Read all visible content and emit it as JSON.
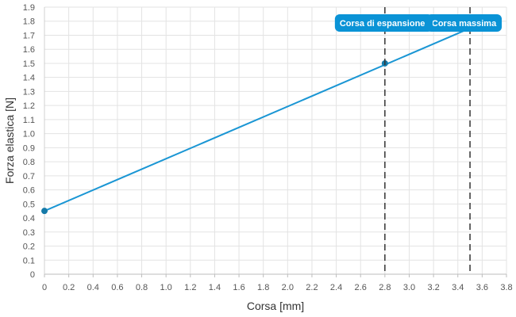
{
  "chart_data": {
    "type": "line",
    "title": "",
    "xlabel": "Corsa [mm]",
    "ylabel": "Forza elastica [N]",
    "xlim": [
      0,
      3.8
    ],
    "ylim": [
      0,
      1.9
    ],
    "x_ticks": [
      0,
      0.2,
      0.4,
      0.6,
      0.8,
      1.0,
      1.2,
      1.4,
      1.6,
      1.8,
      2.0,
      2.2,
      2.4,
      2.6,
      2.8,
      3.0,
      3.2,
      3.4,
      3.6,
      3.8
    ],
    "x_tick_labels": [
      "0",
      "0.2",
      "0.4",
      "0.6",
      "0.8",
      "1.0",
      "1.2",
      "1.4",
      "1.6",
      "1.8",
      "2.0",
      "2.2",
      "2.4",
      "2.6",
      "2.8",
      "3.0",
      "3.2",
      "3.4",
      "3.6",
      "3.8"
    ],
    "y_ticks": [
      0,
      0.1,
      0.2,
      0.3,
      0.4,
      0.5,
      0.6,
      0.7,
      0.8,
      0.9,
      1.0,
      1.1,
      1.2,
      1.3,
      1.4,
      1.5,
      1.6,
      1.7,
      1.8,
      1.9
    ],
    "y_tick_labels": [
      "0",
      "0.1",
      "0.2",
      "0.3",
      "0.4",
      "0.5",
      "0.6",
      "0.7",
      "0.8",
      "0.9",
      "1.0",
      "1.1",
      "1.2",
      "1.3",
      "1.4",
      "1.5",
      "1.6",
      "1.7",
      "1.8",
      "1.9"
    ],
    "grid": true,
    "legend": "none",
    "series": [
      {
        "color": "#1a96d4",
        "x": [
          0,
          3.5
        ],
        "y": [
          0.45,
          1.75
        ]
      }
    ],
    "markers": [
      {
        "x": 0,
        "y": 0.45
      },
      {
        "x": 2.8,
        "y": 1.5
      }
    ],
    "vlines": [
      {
        "x": 2.8,
        "label": "Corsa di espansione"
      },
      {
        "x": 3.5,
        "label": "Corsa massima"
      }
    ],
    "colors": {
      "line": "#1a96d4",
      "marker": "#157aa8",
      "annotation_bg": "#0a93d6",
      "vline": "#333333",
      "grid": "#e3e3e3"
    }
  }
}
